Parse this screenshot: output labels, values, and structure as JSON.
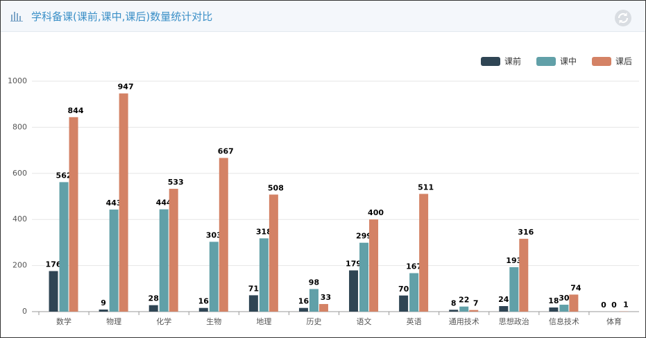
{
  "header": {
    "title": "学科备课(课前,课中,课后)数量统计对比"
  },
  "chart_data": {
    "type": "bar",
    "categories": [
      "数学",
      "物理",
      "化学",
      "生物",
      "地理",
      "历史",
      "语文",
      "英语",
      "通用技术",
      "思想政治",
      "信息技术",
      "体育"
    ],
    "series": [
      {
        "name": "课前",
        "color": "#2f4554",
        "values": [
          176,
          9,
          28,
          16,
          71,
          16,
          179,
          70,
          8,
          24,
          18,
          0
        ]
      },
      {
        "name": "课中",
        "color": "#61a0a8",
        "values": [
          562,
          443,
          444,
          303,
          318,
          98,
          299,
          167,
          22,
          193,
          30,
          0
        ]
      },
      {
        "name": "课后",
        "color": "#d48265",
        "values": [
          844,
          947,
          533,
          667,
          508,
          33,
          400,
          511,
          7,
          316,
          74,
          1
        ]
      }
    ],
    "ylim": [
      0,
      1000
    ],
    "yticks": [
      0,
      200,
      400,
      600,
      800,
      1000
    ],
    "grid": true,
    "legend": "top-right"
  }
}
